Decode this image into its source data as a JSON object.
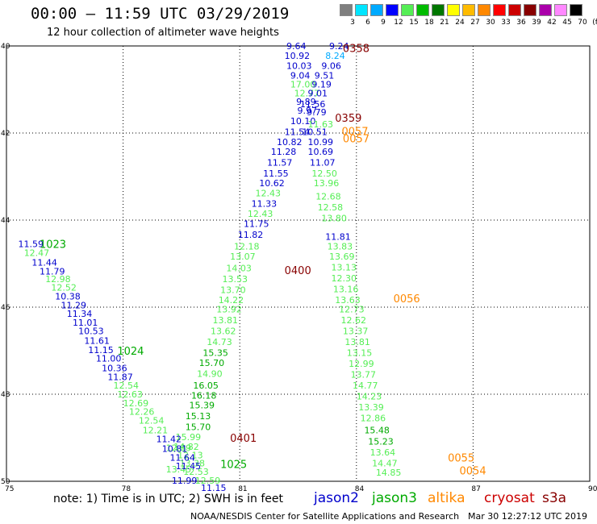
{
  "header": {
    "title": "00:00 – 11:59 UTC 03/29/2019",
    "subtitle": "12 hour collection of altimeter wave heights"
  },
  "legend": {
    "levels": [
      "3",
      "6",
      "9",
      "12",
      "15",
      "18",
      "21",
      "24",
      "27",
      "30",
      "33",
      "36",
      "39",
      "42",
      "45",
      "70",
      "(ft)"
    ],
    "colors": [
      "#7f7f7f",
      "#00e5ff",
      "#00aaff",
      "#0000ff",
      "#55ee55",
      "#00bb00",
      "#007700",
      "#ffff00",
      "#ffbb00",
      "#ff8800",
      "#ff0000",
      "#cc0000",
      "#880000",
      "#aa00aa",
      "#ff88ff",
      "#000000"
    ]
  },
  "axes": {
    "x_ticks": [
      "75",
      "78",
      "81",
      "84",
      "87",
      "90"
    ],
    "y_ticks": [
      "40",
      "42",
      "44",
      "46",
      "48",
      "50"
    ]
  },
  "satellites": [
    {
      "name": "jason2",
      "color": "#0000cc"
    },
    {
      "name": "jason3",
      "color": "#00aa00"
    },
    {
      "name": "altika",
      "color": "#ff8800"
    },
    {
      "name": "cryosat",
      "color": "#cc0000"
    },
    {
      "name": "s3a",
      "color": "#880000"
    }
  ],
  "track_labels": [
    {
      "text": "0358",
      "lon": 83.65,
      "lat": 40.05,
      "color": "#880000"
    },
    {
      "text": "0359",
      "lon": 83.45,
      "lat": 41.65,
      "color": "#880000"
    },
    {
      "text": "0057",
      "lon": 83.62,
      "lat": 41.95,
      "color": "#ff8800"
    },
    {
      "text": "0057",
      "lon": 83.65,
      "lat": 42.12,
      "color": "#ff8800"
    },
    {
      "text": "1023",
      "lon": 75.85,
      "lat": 44.55,
      "color": "#00aa00"
    },
    {
      "text": "0400",
      "lon": 82.15,
      "lat": 45.15,
      "color": "#880000"
    },
    {
      "text": "0056",
      "lon": 84.95,
      "lat": 45.8,
      "color": "#ff8800"
    },
    {
      "text": "1024",
      "lon": 77.85,
      "lat": 47.0,
      "color": "#00aa00"
    },
    {
      "text": "0401",
      "lon": 80.75,
      "lat": 49.0,
      "color": "#880000"
    },
    {
      "text": "1025",
      "lon": 80.5,
      "lat": 49.6,
      "color": "#00aa00"
    },
    {
      "text": "0055",
      "lon": 86.35,
      "lat": 49.45,
      "color": "#ff8800"
    },
    {
      "text": "0054",
      "lon": 86.65,
      "lat": 49.75,
      "color": "#ff8800"
    }
  ],
  "observations": [
    {
      "v": "9.64",
      "lon": 82.2,
      "lat": 40.0,
      "c": "#0000cc"
    },
    {
      "v": "9.24",
      "lon": 83.3,
      "lat": 40.0,
      "c": "#0000cc"
    },
    {
      "v": "10.92",
      "lon": 82.15,
      "lat": 40.22,
      "c": "#0000cc"
    },
    {
      "v": "8.24",
      "lon": 83.2,
      "lat": 40.22,
      "c": "#00aaff"
    },
    {
      "v": "10.03",
      "lon": 82.2,
      "lat": 40.45,
      "c": "#0000cc"
    },
    {
      "v": "9.06",
      "lon": 83.1,
      "lat": 40.45,
      "c": "#0000cc"
    },
    {
      "v": "9.04",
      "lon": 82.3,
      "lat": 40.68,
      "c": "#0000cc"
    },
    {
      "v": "9.51",
      "lon": 82.92,
      "lat": 40.68,
      "c": "#0000cc"
    },
    {
      "v": "17.00",
      "lon": 82.3,
      "lat": 40.88,
      "c": "#55ee55"
    },
    {
      "v": "9.19",
      "lon": 82.85,
      "lat": 40.88,
      "c": "#0000cc"
    },
    {
      "v": "12.77",
      "lon": 82.4,
      "lat": 41.08,
      "c": "#55ee55"
    },
    {
      "v": "9.01",
      "lon": 82.75,
      "lat": 41.08,
      "c": "#0000cc"
    },
    {
      "v": "9.89",
      "lon": 82.45,
      "lat": 41.28,
      "c": "#0000cc"
    },
    {
      "v": "11.56",
      "lon": 82.55,
      "lat": 41.33,
      "c": "#0000cc"
    },
    {
      "v": "9.97",
      "lon": 82.48,
      "lat": 41.48,
      "c": "#0000cc"
    },
    {
      "v": "9.79",
      "lon": 82.72,
      "lat": 41.52,
      "c": "#0000cc"
    },
    {
      "v": "10.10",
      "lon": 82.3,
      "lat": 41.72,
      "c": "#0000cc"
    },
    {
      "v": "11.63",
      "lon": 82.75,
      "lat": 41.8,
      "c": "#55ee55"
    },
    {
      "v": "11.54",
      "lon": 82.15,
      "lat": 41.97,
      "c": "#0000cc"
    },
    {
      "v": "10.51",
      "lon": 82.6,
      "lat": 41.97,
      "c": "#0000cc"
    },
    {
      "v": "10.82",
      "lon": 81.95,
      "lat": 42.2,
      "c": "#0000cc"
    },
    {
      "v": "10.99",
      "lon": 82.75,
      "lat": 42.2,
      "c": "#0000cc"
    },
    {
      "v": "11.28",
      "lon": 81.8,
      "lat": 42.43,
      "c": "#0000cc"
    },
    {
      "v": "10.69",
      "lon": 82.75,
      "lat": 42.43,
      "c": "#0000cc"
    },
    {
      "v": "11.57",
      "lon": 81.7,
      "lat": 42.68,
      "c": "#0000cc"
    },
    {
      "v": "11.07",
      "lon": 82.8,
      "lat": 42.68,
      "c": "#0000cc"
    },
    {
      "v": "11.55",
      "lon": 81.6,
      "lat": 42.93,
      "c": "#0000cc"
    },
    {
      "v": "12.50",
      "lon": 82.85,
      "lat": 42.93,
      "c": "#55ee55"
    },
    {
      "v": "10.62",
      "lon": 81.5,
      "lat": 43.15,
      "c": "#0000cc"
    },
    {
      "v": "13.96",
      "lon": 82.9,
      "lat": 43.15,
      "c": "#55ee55"
    },
    {
      "v": "12.43",
      "lon": 81.4,
      "lat": 43.38,
      "c": "#55ee55"
    },
    {
      "v": "12.68",
      "lon": 82.95,
      "lat": 43.45,
      "c": "#55ee55"
    },
    {
      "v": "11.33",
      "lon": 81.3,
      "lat": 43.62,
      "c": "#0000cc"
    },
    {
      "v": "12.58",
      "lon": 83.0,
      "lat": 43.7,
      "c": "#55ee55"
    },
    {
      "v": "12.43",
      "lon": 81.2,
      "lat": 43.85,
      "c": "#55ee55"
    },
    {
      "v": "13.80",
      "lon": 83.1,
      "lat": 43.95,
      "c": "#55ee55"
    },
    {
      "v": "11.75",
      "lon": 81.1,
      "lat": 44.08,
      "c": "#0000cc"
    },
    {
      "v": "11.81",
      "lon": 83.2,
      "lat": 44.38,
      "c": "#0000cc"
    },
    {
      "v": "11.82",
      "lon": 80.95,
      "lat": 44.33,
      "c": "#0000cc"
    },
    {
      "v": "12.18",
      "lon": 80.85,
      "lat": 44.6,
      "c": "#55ee55"
    },
    {
      "v": "13.83",
      "lon": 83.25,
      "lat": 44.6,
      "c": "#55ee55"
    },
    {
      "v": "13.07",
      "lon": 80.75,
      "lat": 44.83,
      "c": "#55ee55"
    },
    {
      "v": "13.69",
      "lon": 83.3,
      "lat": 44.83,
      "c": "#55ee55"
    },
    {
      "v": "14.03",
      "lon": 80.65,
      "lat": 45.1,
      "c": "#55ee55"
    },
    {
      "v": "13.13",
      "lon": 83.35,
      "lat": 45.08,
      "c": "#55ee55"
    },
    {
      "v": "13.53",
      "lon": 80.55,
      "lat": 45.35,
      "c": "#55ee55"
    },
    {
      "v": "12.30",
      "lon": 83.35,
      "lat": 45.33,
      "c": "#55ee55"
    },
    {
      "v": "13.70",
      "lon": 80.5,
      "lat": 45.6,
      "c": "#55ee55"
    },
    {
      "v": "13.16",
      "lon": 83.4,
      "lat": 45.58,
      "c": "#55ee55"
    },
    {
      "v": "14.22",
      "lon": 80.45,
      "lat": 45.83,
      "c": "#55ee55"
    },
    {
      "v": "13.63",
      "lon": 83.45,
      "lat": 45.83,
      "c": "#55ee55"
    },
    {
      "v": "13.92",
      "lon": 80.4,
      "lat": 46.05,
      "c": "#55ee55"
    },
    {
      "v": "12.73",
      "lon": 83.55,
      "lat": 46.05,
      "c": "#55ee55"
    },
    {
      "v": "13.81",
      "lon": 80.3,
      "lat": 46.3,
      "c": "#55ee55"
    },
    {
      "v": "12.62",
      "lon": 83.6,
      "lat": 46.3,
      "c": "#55ee55"
    },
    {
      "v": "13.62",
      "lon": 80.25,
      "lat": 46.55,
      "c": "#55ee55"
    },
    {
      "v": "13.37",
      "lon": 83.65,
      "lat": 46.55,
      "c": "#55ee55"
    },
    {
      "v": "14.73",
      "lon": 80.15,
      "lat": 46.8,
      "c": "#55ee55"
    },
    {
      "v": "13.81",
      "lon": 83.7,
      "lat": 46.8,
      "c": "#55ee55"
    },
    {
      "v": "15.35",
      "lon": 80.05,
      "lat": 47.05,
      "c": "#00aa00"
    },
    {
      "v": "13.15",
      "lon": 83.75,
      "lat": 47.05,
      "c": "#55ee55"
    },
    {
      "v": "15.70",
      "lon": 79.95,
      "lat": 47.28,
      "c": "#00aa00"
    },
    {
      "v": "12.99",
      "lon": 83.8,
      "lat": 47.3,
      "c": "#55ee55"
    },
    {
      "v": "14.90",
      "lon": 79.9,
      "lat": 47.53,
      "c": "#55ee55"
    },
    {
      "v": "13.77",
      "lon": 83.85,
      "lat": 47.55,
      "c": "#55ee55"
    },
    {
      "v": "16.05",
      "lon": 79.8,
      "lat": 47.8,
      "c": "#00aa00"
    },
    {
      "v": "14.77",
      "lon": 83.9,
      "lat": 47.8,
      "c": "#55ee55"
    },
    {
      "v": "16.18",
      "lon": 79.75,
      "lat": 48.03,
      "c": "#00aa00"
    },
    {
      "v": "14.23",
      "lon": 84.0,
      "lat": 48.05,
      "c": "#55ee55"
    },
    {
      "v": "15.39",
      "lon": 79.7,
      "lat": 48.25,
      "c": "#00aa00"
    },
    {
      "v": "13.39",
      "lon": 84.05,
      "lat": 48.3,
      "c": "#55ee55"
    },
    {
      "v": "15.13",
      "lon": 79.6,
      "lat": 48.5,
      "c": "#00aa00"
    },
    {
      "v": "12.86",
      "lon": 84.1,
      "lat": 48.55,
      "c": "#55ee55"
    },
    {
      "v": "15.70",
      "lon": 79.6,
      "lat": 48.75,
      "c": "#00aa00"
    },
    {
      "v": "15.48",
      "lon": 84.2,
      "lat": 48.82,
      "c": "#00aa00"
    },
    {
      "v": "15.99",
      "lon": 79.35,
      "lat": 48.98,
      "c": "#55ee55"
    },
    {
      "v": "15.23",
      "lon": 84.3,
      "lat": 49.08,
      "c": "#00aa00"
    },
    {
      "v": "14.82",
      "lon": 79.3,
      "lat": 49.2,
      "c": "#55ee55"
    },
    {
      "v": "13.64",
      "lon": 84.35,
      "lat": 49.33,
      "c": "#55ee55"
    },
    {
      "v": "12.89",
      "lon": 79.1,
      "lat": 49.23,
      "c": "#55ee55"
    },
    {
      "v": "12.13",
      "lon": 79.4,
      "lat": 49.4,
      "c": "#55ee55"
    },
    {
      "v": "14.47",
      "lon": 84.4,
      "lat": 49.58,
      "c": "#55ee55"
    },
    {
      "v": "13.38",
      "lon": 79.45,
      "lat": 49.58,
      "c": "#55ee55"
    },
    {
      "v": "12.53",
      "lon": 79.55,
      "lat": 49.78,
      "c": "#55ee55"
    },
    {
      "v": "14.85",
      "lon": 84.5,
      "lat": 49.8,
      "c": "#55ee55"
    },
    {
      "v": "13.45",
      "lon": 79.1,
      "lat": 49.72,
      "c": "#55ee55"
    },
    {
      "v": "11.99",
      "lon": 79.25,
      "lat": 49.98,
      "c": "#0000cc"
    },
    {
      "v": "12.59",
      "lon": 79.85,
      "lat": 49.98,
      "c": "#55ee55"
    },
    {
      "v": "11.15",
      "lon": 80.0,
      "lat": 50.15,
      "c": "#0000cc"
    },
    {
      "v": "11.59",
      "lon": 75.3,
      "lat": 44.55,
      "c": "#0000cc"
    },
    {
      "v": "12.47",
      "lon": 75.45,
      "lat": 44.75,
      "c": "#55ee55"
    },
    {
      "v": "11.44",
      "lon": 75.65,
      "lat": 44.97,
      "c": "#0000cc"
    },
    {
      "v": "11.79",
      "lon": 75.85,
      "lat": 45.18,
      "c": "#0000cc"
    },
    {
      "v": "12.98",
      "lon": 76.0,
      "lat": 45.35,
      "c": "#55ee55"
    },
    {
      "v": "12.52",
      "lon": 76.15,
      "lat": 45.55,
      "c": "#55ee55"
    },
    {
      "v": "10.38",
      "lon": 76.25,
      "lat": 45.75,
      "c": "#0000cc"
    },
    {
      "v": "11.29",
      "lon": 76.4,
      "lat": 45.95,
      "c": "#0000cc"
    },
    {
      "v": "11.34",
      "lon": 76.55,
      "lat": 46.15,
      "c": "#0000cc"
    },
    {
      "v": "11.01",
      "lon": 76.7,
      "lat": 46.35,
      "c": "#0000cc"
    },
    {
      "v": "10.53",
      "lon": 76.85,
      "lat": 46.55,
      "c": "#0000cc"
    },
    {
      "v": "11.61",
      "lon": 77.0,
      "lat": 46.77,
      "c": "#0000cc"
    },
    {
      "v": "11.15",
      "lon": 77.1,
      "lat": 46.98,
      "c": "#0000cc"
    },
    {
      "v": "11.00",
      "lon": 77.3,
      "lat": 47.18,
      "c": "#0000cc"
    },
    {
      "v": "10.36",
      "lon": 77.45,
      "lat": 47.4,
      "c": "#0000cc"
    },
    {
      "v": "11.87",
      "lon": 77.6,
      "lat": 47.6,
      "c": "#0000cc"
    },
    {
      "v": "12.54",
      "lon": 77.75,
      "lat": 47.8,
      "c": "#55ee55"
    },
    {
      "v": "12.63",
      "lon": 77.85,
      "lat": 48.0,
      "c": "#55ee55"
    },
    {
      "v": "12.69",
      "lon": 78.0,
      "lat": 48.2,
      "c": "#55ee55"
    },
    {
      "v": "12.26",
      "lon": 78.15,
      "lat": 48.4,
      "c": "#55ee55"
    },
    {
      "v": "12.54",
      "lon": 78.4,
      "lat": 48.6,
      "c": "#55ee55"
    },
    {
      "v": "12.21",
      "lon": 78.5,
      "lat": 48.82,
      "c": "#55ee55"
    },
    {
      "v": "11.42",
      "lon": 78.85,
      "lat": 49.03,
      "c": "#0000cc"
    },
    {
      "v": "10.81",
      "lon": 79.0,
      "lat": 49.25,
      "c": "#0000cc"
    },
    {
      "v": "11.64",
      "lon": 79.2,
      "lat": 49.45,
      "c": "#0000cc"
    },
    {
      "v": "11.45",
      "lon": 79.35,
      "lat": 49.65,
      "c": "#0000cc"
    }
  ],
  "footer": {
    "note": "note: 1) Time is in UTC; 2) SWH is in feet",
    "credit": "NOAA/NESDIS Center for Satellite Applications and Research",
    "timestamp": "Mar 30 12:27:12 UTC 2019"
  }
}
